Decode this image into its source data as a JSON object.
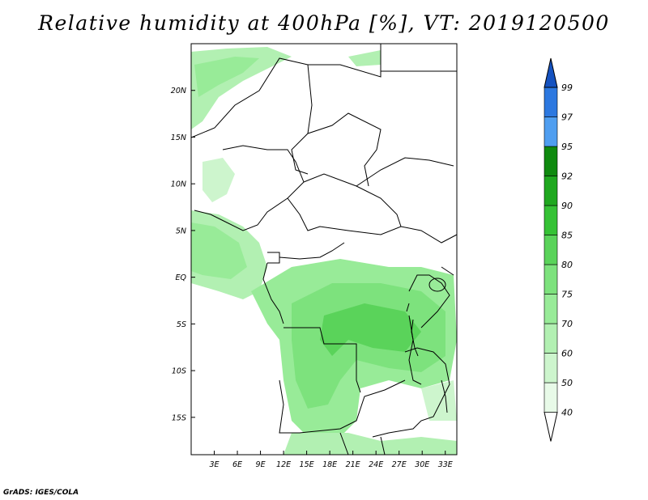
{
  "title": "Relative humidity at 400hPa [%], VT: 2019120500",
  "credit": "GrADS: IGES/COLA",
  "map": {
    "lon_labels": [
      "3E",
      "6E",
      "9E",
      "12E",
      "15E",
      "18E",
      "21E",
      "24E",
      "27E",
      "30E",
      "33E"
    ],
    "lat_labels": [
      "20N",
      "15N",
      "10N",
      "5N",
      "EQ",
      "5S",
      "10S",
      "15S"
    ],
    "lon_range": [
      0,
      34.5
    ],
    "lat_range": [
      -19,
      25
    ]
  },
  "colorbar": {
    "levels": [
      "40",
      "50",
      "60",
      "70",
      "75",
      "80",
      "85",
      "90",
      "92",
      "95",
      "97",
      "99"
    ],
    "colors": [
      "#ffffff",
      "#e8fae8",
      "#cdf5cd",
      "#b2f0b2",
      "#98eb98",
      "#7de27d",
      "#5ad35a",
      "#35c235",
      "#1fa81f",
      "#0f8a0f",
      "#4f9ef0",
      "#2c78e0",
      "#1552c0"
    ]
  }
}
